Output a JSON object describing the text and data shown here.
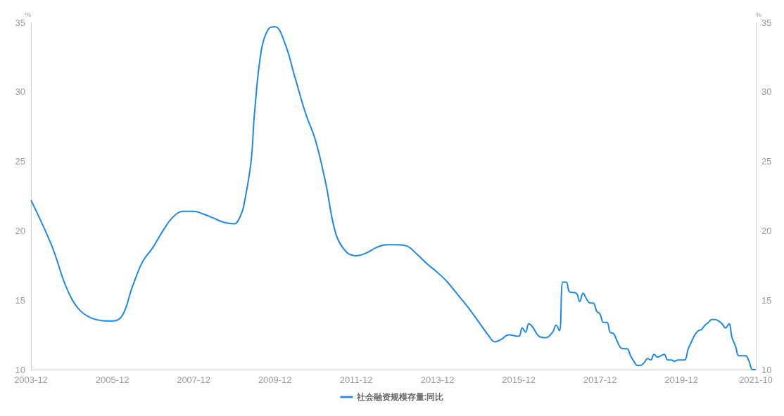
{
  "chart_data": {
    "type": "line",
    "ylabel": "%",
    "y2label": "%",
    "x": [
      "2003-12",
      "2004-06",
      "2004-12",
      "2005-06",
      "2005-12",
      "2006-03",
      "2006-06",
      "2006-09",
      "2006-12",
      "2007-03",
      "2007-06",
      "2007-09",
      "2007-12",
      "2008-03",
      "2008-06",
      "2008-09",
      "2008-12",
      "2009-02",
      "2009-03",
      "2009-05",
      "2009-06",
      "2009-08",
      "2009-10",
      "2009-12",
      "2010-03",
      "2010-06",
      "2010-09",
      "2010-12",
      "2011-03",
      "2011-06",
      "2011-09",
      "2011-12",
      "2012-03",
      "2012-06",
      "2012-09",
      "2012-12",
      "2013-03",
      "2013-06",
      "2013-09",
      "2013-12",
      "2014-03",
      "2014-06",
      "2014-09",
      "2014-12",
      "2015-03",
      "2015-05",
      "2015-07",
      "2015-09",
      "2015-12",
      "2016-01",
      "2016-02",
      "2016-03",
      "2016-04",
      "2016-06",
      "2016-08",
      "2016-10",
      "2016-11",
      "2016-12",
      "2017-01",
      "2017-02",
      "2017-03",
      "2017-05",
      "2017-06",
      "2017-07",
      "2017-08",
      "2017-09",
      "2017-10",
      "2017-11",
      "2017-12",
      "2018-01",
      "2018-02",
      "2018-03",
      "2018-04",
      "2018-05",
      "2018-06",
      "2018-07",
      "2018-08",
      "2018-09",
      "2018-10",
      "2018-11",
      "2018-12",
      "2019-01",
      "2019-02",
      "2019-03",
      "2019-04",
      "2019-05",
      "2019-06",
      "2019-07",
      "2019-08",
      "2019-09",
      "2019-10",
      "2019-11",
      "2019-12",
      "2020-01",
      "2020-02",
      "2020-03",
      "2020-04",
      "2020-05",
      "2020-06",
      "2020-07",
      "2020-08",
      "2020-09",
      "2020-10",
      "2020-11",
      "2020-12",
      "2021-01",
      "2021-02",
      "2021-03",
      "2021-04",
      "2021-05",
      "2021-06",
      "2021-07",
      "2021-08",
      "2021-09",
      "2021-10"
    ],
    "series": [
      {
        "name": "社会融资规模存量:同比",
        "color": "#1e88e5",
        "values": [
          22.2,
          19.0,
          15.1,
          13.7,
          13.5,
          13.9,
          16.0,
          17.8,
          18.8,
          20.0,
          21.0,
          21.4,
          21.4,
          21.2,
          20.9,
          20.6,
          20.5,
          21.2,
          22.0,
          25.0,
          28.5,
          33.0,
          34.5,
          34.7,
          33.5,
          31.0,
          28.5,
          26.5,
          23.5,
          19.8,
          18.5,
          18.2,
          18.4,
          18.8,
          19.0,
          19.0,
          18.9,
          18.3,
          17.6,
          17.0,
          16.3,
          15.4,
          14.5,
          13.5,
          12.5,
          12.0,
          12.2,
          12.5,
          12.4,
          13.0,
          12.7,
          13.3,
          13.1,
          12.4,
          12.3,
          12.7,
          13.2,
          12.8,
          16.3,
          16.3,
          15.6,
          15.5,
          14.9,
          15.5,
          15.1,
          14.8,
          14.8,
          14.2,
          14.0,
          13.4,
          13.4,
          12.7,
          12.6,
          12.1,
          11.6,
          11.5,
          11.5,
          11.0,
          10.6,
          10.3,
          10.3,
          10.5,
          10.8,
          10.7,
          11.1,
          10.9,
          11.0,
          11.1,
          10.7,
          10.7,
          10.6,
          10.7,
          10.7,
          10.7,
          11.5,
          12.0,
          12.5,
          12.8,
          12.9,
          13.2,
          13.4,
          13.6,
          13.6,
          13.5,
          13.3,
          13.0,
          13.3,
          12.3,
          11.7,
          11.0,
          11.0,
          11.0,
          10.6,
          10.0,
          10.0
        ]
      }
    ],
    "xlim": [
      "2003-12",
      "2021-10"
    ],
    "xticks": [
      "2003-12",
      "2005-12",
      "2007-12",
      "2009-12",
      "2011-12",
      "2013-12",
      "2015-12",
      "2017-12",
      "2019-12",
      "2021-10"
    ],
    "ylim": [
      10,
      35
    ],
    "yticks": [
      10,
      15,
      20,
      25,
      30,
      35
    ],
    "y2lim": [
      10,
      35
    ],
    "y2ticks": [
      10,
      15,
      20,
      25,
      30,
      35
    ],
    "grid": false,
    "legend": "bottom",
    "marker": "none",
    "line_style": "solid"
  }
}
